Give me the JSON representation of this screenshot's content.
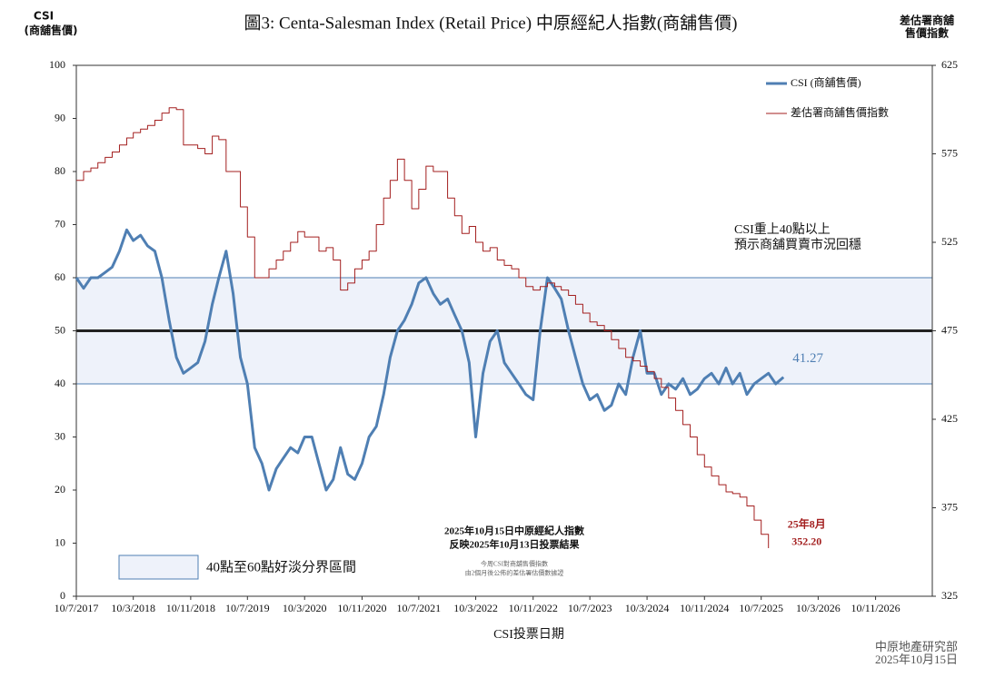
{
  "chart_data": {
    "type": "line",
    "title": "圖3: Centa-Salesman Index (Retail Price)   中原經紀人指數(商舖售價)",
    "y_label": [
      "CSI",
      "(商舖售價)"
    ],
    "y2_label": [
      "差估署商舖",
      "售價指數"
    ],
    "x_label": "CSI投票日期",
    "legend": "top-right",
    "step_series": [
      1
    ],
    "xlim": [
      "2017-07-10",
      "2027-07-10"
    ],
    "xticks": [
      {
        "value": "2017-07-10",
        "label": "10/7/2017"
      },
      {
        "value": "2018-03-10",
        "label": "10/3/2018"
      },
      {
        "value": "2018-11-10",
        "label": "10/11/2018"
      },
      {
        "value": "2019-07-10",
        "label": "10/7/2019"
      },
      {
        "value": "2020-03-10",
        "label": "10/3/2020"
      },
      {
        "value": "2020-11-10",
        "label": "10/11/2020"
      },
      {
        "value": "2021-07-10",
        "label": "10/7/2021"
      },
      {
        "value": "2022-03-10",
        "label": "10/3/2022"
      },
      {
        "value": "2022-11-10",
        "label": "10/11/2022"
      },
      {
        "value": "2023-07-10",
        "label": "10/7/2023"
      },
      {
        "value": "2024-03-10",
        "label": "10/3/2024"
      },
      {
        "value": "2024-11-10",
        "label": "10/11/2024"
      },
      {
        "value": "2025-07-10",
        "label": "10/7/2025"
      },
      {
        "value": "2026-03-10",
        "label": "10/3/2026"
      },
      {
        "value": "2026-11-10",
        "label": "10/11/2026"
      }
    ],
    "ylim": [
      0,
      100
    ],
    "yticks": [
      0,
      10,
      20,
      30,
      40,
      50,
      60,
      70,
      80,
      90,
      100
    ],
    "y2lim": [
      325,
      625
    ],
    "y2ticks": [
      325,
      375,
      425,
      475,
      525,
      575,
      625
    ],
    "reference_band": {
      "from": 40,
      "to": 60,
      "color": "#eef2fa",
      "label": "40點至60點好淡分界區間"
    },
    "reference_line": 50,
    "x": [
      "2017-07-10",
      "2017-08-10",
      "2017-09-10",
      "2017-10-10",
      "2017-11-10",
      "2017-12-10",
      "2018-01-10",
      "2018-02-10",
      "2018-03-10",
      "2018-04-10",
      "2018-05-10",
      "2018-06-10",
      "2018-07-10",
      "2018-08-10",
      "2018-09-10",
      "2018-10-10",
      "2018-11-10",
      "2018-12-10",
      "2019-01-10",
      "2019-02-10",
      "2019-03-10",
      "2019-04-10",
      "2019-05-10",
      "2019-06-10",
      "2019-07-10",
      "2019-08-10",
      "2019-09-10",
      "2019-10-10",
      "2019-11-10",
      "2019-12-10",
      "2020-01-10",
      "2020-02-10",
      "2020-03-10",
      "2020-04-10",
      "2020-05-10",
      "2020-06-10",
      "2020-07-10",
      "2020-08-10",
      "2020-09-10",
      "2020-10-10",
      "2020-11-10",
      "2020-12-10",
      "2021-01-10",
      "2021-02-10",
      "2021-03-10",
      "2021-04-10",
      "2021-05-10",
      "2021-06-10",
      "2021-07-10",
      "2021-08-10",
      "2021-09-10",
      "2021-10-10",
      "2021-11-10",
      "2021-12-10",
      "2022-01-10",
      "2022-02-10",
      "2022-03-10",
      "2022-04-10",
      "2022-05-10",
      "2022-06-10",
      "2022-07-10",
      "2022-08-10",
      "2022-09-10",
      "2022-10-10",
      "2022-11-10",
      "2022-12-10",
      "2023-01-10",
      "2023-02-10",
      "2023-03-10",
      "2023-04-10",
      "2023-05-10",
      "2023-06-10",
      "2023-07-10",
      "2023-08-10",
      "2023-09-10",
      "2023-10-10",
      "2023-11-10",
      "2023-12-10",
      "2024-01-10",
      "2024-02-10",
      "2024-03-10",
      "2024-04-10",
      "2024-05-10",
      "2024-06-10",
      "2024-07-10",
      "2024-08-10",
      "2024-09-10",
      "2024-10-10",
      "2024-11-10",
      "2024-12-10",
      "2025-01-10",
      "2025-02-10",
      "2025-03-10",
      "2025-04-10",
      "2025-05-10",
      "2025-06-10",
      "2025-07-10",
      "2025-08-10",
      "2025-09-10",
      "2025-10-13"
    ],
    "series": [
      {
        "name": "CSI (商舖售價)",
        "color": "#4f7fb3",
        "width": 3,
        "values": [
          60,
          58,
          60,
          60,
          61,
          62,
          65,
          69,
          67,
          68,
          66,
          65,
          60,
          52,
          45,
          42,
          43,
          44,
          48,
          55,
          60,
          65,
          57,
          45,
          40,
          28,
          25,
          20,
          24,
          26,
          28,
          27,
          30,
          30,
          25,
          20,
          22,
          28,
          23,
          22,
          25,
          30,
          32,
          38,
          45,
          50,
          52,
          55,
          59,
          60,
          57,
          55,
          56,
          53,
          50,
          44,
          30,
          42,
          48,
          50,
          44,
          42,
          40,
          38,
          37,
          50,
          60,
          58,
          56,
          50,
          45,
          40,
          37,
          38,
          35,
          36,
          40,
          38,
          45,
          50,
          42,
          42,
          38,
          40,
          39,
          41,
          38,
          39,
          41,
          42,
          40,
          43,
          40,
          42,
          38,
          40,
          41,
          42,
          40,
          41.27
        ]
      },
      {
        "name": "差估署商舖售價指數",
        "color": "#a31f1f",
        "width": 1,
        "axis": "y2",
        "values": [
          560,
          565,
          567,
          570,
          573,
          576,
          580,
          584,
          587,
          589,
          591,
          594,
          598,
          601,
          600,
          580,
          580,
          578,
          575,
          585,
          583,
          565,
          565,
          545,
          528,
          505,
          505,
          510,
          515,
          520,
          525,
          531,
          528,
          528,
          520,
          522,
          515,
          498,
          502,
          510,
          515,
          520,
          535,
          550,
          560,
          572,
          560,
          544,
          555,
          568,
          565,
          565,
          550,
          540,
          530,
          534,
          525,
          520,
          522,
          515,
          512,
          510,
          505,
          500,
          498,
          500,
          502,
          500,
          498,
          495,
          490,
          485,
          480,
          478,
          475,
          470,
          465,
          460,
          458,
          455,
          452,
          448,
          443,
          437,
          430,
          422,
          415,
          405,
          398,
          393,
          388,
          384,
          383,
          381,
          376,
          368,
          360,
          352.2,
          null,
          null
        ],
        "value_labels": [
          null,
          null,
          null,
          null,
          null,
          null,
          null,
          null,
          null,
          null,
          null,
          null,
          null,
          null,
          null,
          null,
          null,
          null,
          null,
          null,
          null,
          null,
          null,
          null,
          null,
          null,
          null,
          null,
          null,
          null,
          null,
          null,
          null,
          null,
          null,
          null,
          null,
          null,
          null,
          null,
          null,
          null,
          null,
          null,
          null,
          null,
          null,
          null,
          null,
          null,
          null,
          null,
          null,
          null,
          null,
          null,
          null,
          null,
          null,
          null,
          null,
          null,
          null,
          null,
          null,
          null,
          null,
          null,
          null,
          null,
          null,
          null,
          null,
          null,
          null,
          null,
          null,
          null,
          null,
          null,
          null,
          null,
          null,
          null,
          null,
          null,
          null,
          null,
          null,
          null,
          null,
          null,
          null,
          null,
          null,
          null,
          null,
          "352.20",
          null,
          null
        ]
      }
    ],
    "annotations": {
      "recovery": [
        "CSI重上40點以上",
        "預示商舖買賣市況回穩"
      ],
      "latest_month": "25年8月",
      "vote_note": [
        "2025年10月15日中原經紀人指數",
        "反映2025年10月13日投票結果"
      ],
      "small_note": [
        "今周CSI對商舖售價指數",
        "由2個月後公佈的差估署估價數據證"
      ]
    },
    "source": [
      "中原地產研究部",
      "2025年10月15日"
    ]
  }
}
